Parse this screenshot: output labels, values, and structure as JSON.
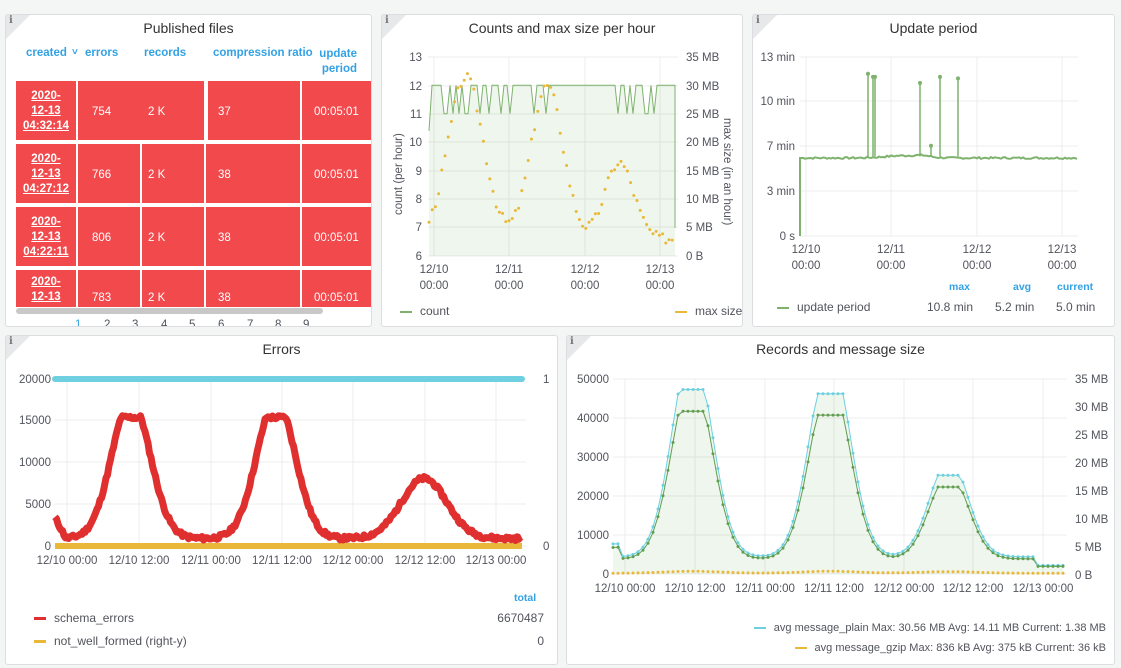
{
  "published_files": {
    "title": "Published files",
    "columns": [
      "created",
      "errors",
      "records",
      "compression ratio",
      "update period"
    ],
    "sort_indicator": "˅",
    "rows": [
      {
        "date": "2020-",
        "date2": "12-13",
        "time": "04:32:14",
        "errors": "754",
        "records": "2 K",
        "ratio": "37",
        "period": "00:05:01"
      },
      {
        "date": "2020-",
        "date2": "12-13",
        "time": "04:27:12",
        "errors": "766",
        "records": "2 K",
        "ratio": "38",
        "period": "00:05:01"
      },
      {
        "date": "2020-",
        "date2": "12-13",
        "time": "04:22:11",
        "errors": "806",
        "records": "2 K",
        "ratio": "38",
        "period": "00:05:01"
      },
      {
        "date": "2020-",
        "date2": "12-13",
        "time": "",
        "errors": "783",
        "records": "2 K",
        "ratio": "38",
        "period": "00:05:01"
      }
    ],
    "pages": [
      "1",
      "2",
      "3",
      "4",
      "5",
      "6",
      "7",
      "8",
      "9"
    ],
    "active_page": "1"
  },
  "counts": {
    "title": "Counts and max size per hour",
    "ylabel_left": "count (per hour)",
    "ylabel_right": "max size (in an hour)",
    "left_ticks": [
      "13",
      "12",
      "11",
      "10",
      "9",
      "8",
      "7",
      "6"
    ],
    "right_ticks": [
      "35 MB",
      "30 MB",
      "25 MB",
      "20 MB",
      "15 MB",
      "10 MB",
      "5 MB",
      "0 B"
    ],
    "x_ticks": [
      [
        "12/10",
        "00:00"
      ],
      [
        "12/11",
        "00:00"
      ],
      [
        "12/12",
        "00:00"
      ],
      [
        "12/13",
        "00:00"
      ]
    ],
    "legend": [
      "count",
      "max size"
    ]
  },
  "update": {
    "title": "Update period",
    "y_ticks": [
      "13 min",
      "10 min",
      "7 min",
      "3 min",
      "0 s"
    ],
    "x_ticks": [
      [
        "12/10",
        "00:00"
      ],
      [
        "12/11",
        "00:00"
      ],
      [
        "12/12",
        "00:00"
      ],
      [
        "12/13",
        "00:00"
      ]
    ],
    "stat_headers": [
      "max",
      "avg",
      "current"
    ],
    "legend_name": "update period",
    "stats": [
      "10.8 min",
      "5.2 min",
      "5.0 min"
    ]
  },
  "errors": {
    "title": "Errors",
    "y_ticks": [
      "20000",
      "15000",
      "10000",
      "5000",
      "0"
    ],
    "right_ticks": [
      "1",
      "0"
    ],
    "x_ticks": [
      "12/10 00:00",
      "12/10 12:00",
      "12/11 00:00",
      "12/11 12:00",
      "12/12 00:00",
      "12/12 12:00",
      "12/13 00:00"
    ],
    "total_header": "total",
    "legend": [
      {
        "name": "schema_errors",
        "value": "6670487",
        "color": "#e02f2f"
      },
      {
        "name": "not_well_formed (right-y)",
        "value": "0",
        "color": "#eab839"
      }
    ]
  },
  "records": {
    "title": "Records and message size",
    "y_ticks": [
      "50000",
      "40000",
      "30000",
      "20000",
      "10000",
      "0"
    ],
    "right_ticks": [
      "35 MB",
      "30 MB",
      "25 MB",
      "20 MB",
      "15 MB",
      "10 MB",
      "5 MB",
      "0 B"
    ],
    "x_ticks": [
      "12/10 00:00",
      "12/10 12:00",
      "12/11 00:00",
      "12/11 12:00",
      "12/12 00:00",
      "12/12 12:00",
      "12/13 00:00"
    ],
    "legend": [
      "avg message_plain  Max: 30.56 MB  Avg: 14.11 MB  Current: 1.38 MB",
      "avg message_gzip  Max: 836 kB  Avg: 375 kB  Current: 36 kB"
    ]
  },
  "info_icon": "i",
  "colors": {
    "red": "#f2494c",
    "green": "#7eb26d",
    "yellow": "#eab839",
    "cyan": "#6ed0e0",
    "blue": "#33a2e5"
  }
}
